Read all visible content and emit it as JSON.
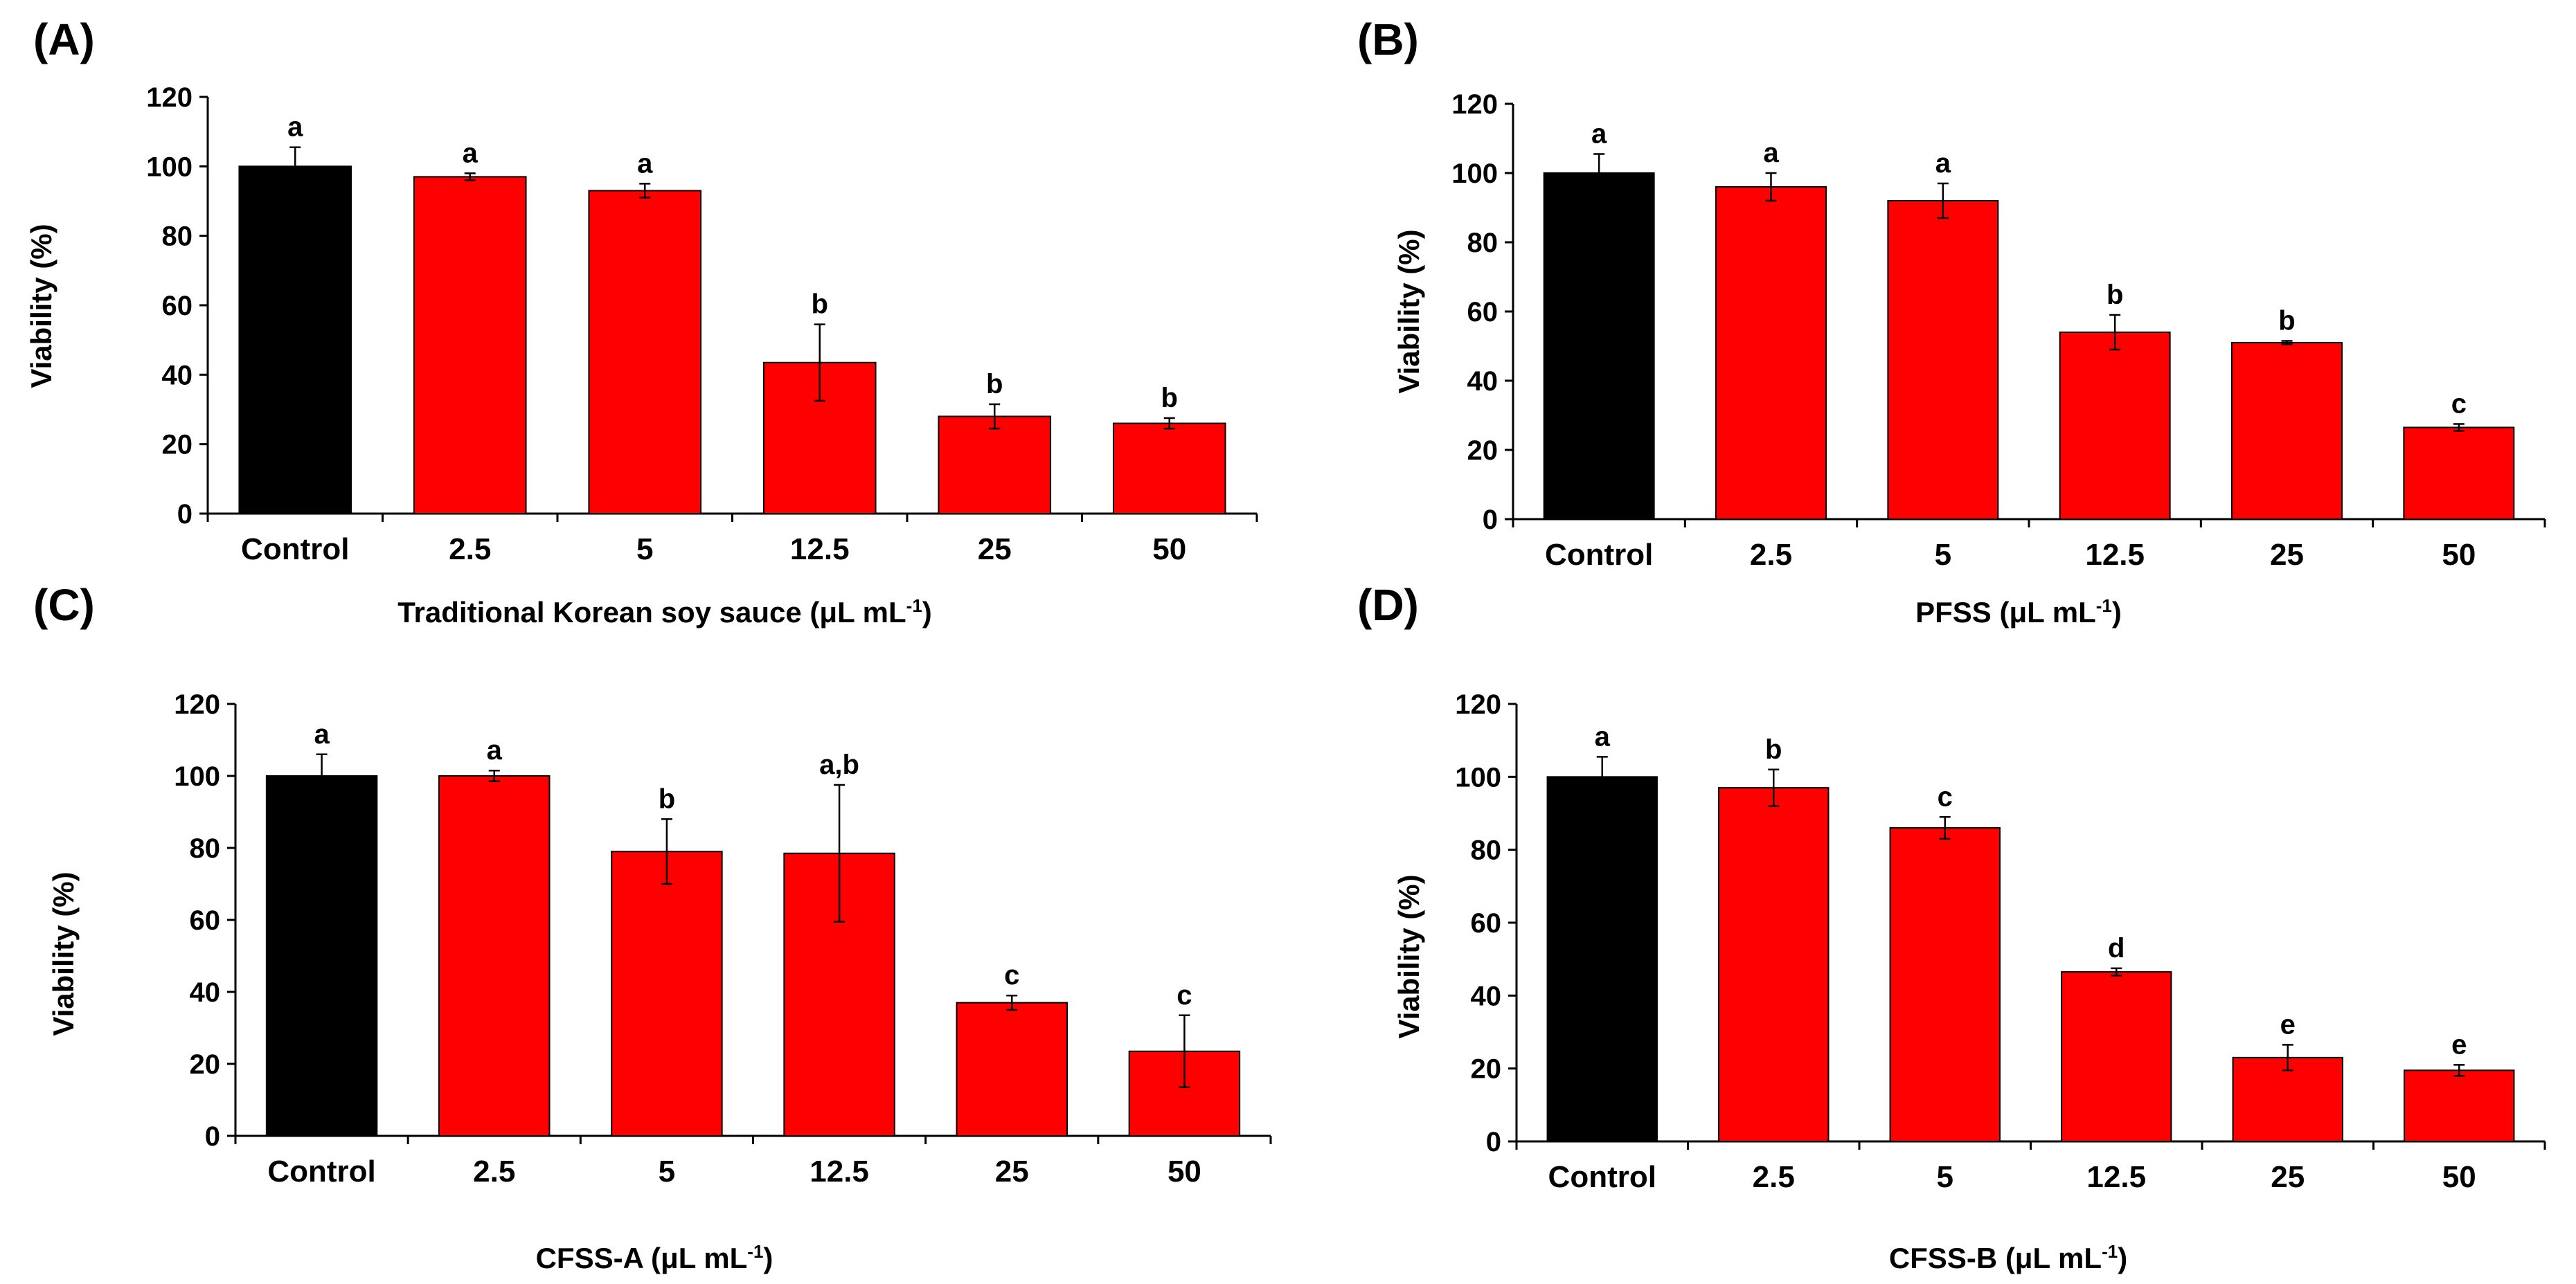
{
  "colors": {
    "control": "#000000",
    "treatment": "#ff0000",
    "axis": "#000000"
  },
  "chart_data": [
    {
      "type": "bar",
      "panel_label": "(A)",
      "categories": [
        "Control",
        "2.5",
        "5",
        "12.5",
        "25",
        "50"
      ],
      "values": [
        100,
        97,
        93,
        43.5,
        28,
        26
      ],
      "errors": [
        5.5,
        1,
        2,
        11,
        3.5,
        1.5
      ],
      "significance": [
        "a",
        "a",
        "a",
        "b",
        "b",
        "b"
      ],
      "xlabel_main": "Traditional Korean soy sauce (μL mL",
      "xlabel_sup": "-1",
      "xlabel_end": ")",
      "ylabel": "Viability (%)",
      "ylim": [
        0,
        120
      ],
      "yticks": [
        0,
        20,
        40,
        60,
        80,
        100,
        120
      ]
    },
    {
      "type": "bar",
      "panel_label": "(B)",
      "categories": [
        "Control",
        "2.5",
        "5",
        "12.5",
        "25",
        "50"
      ],
      "values": [
        100,
        96,
        92,
        54,
        51,
        26.5
      ],
      "errors": [
        5.5,
        4,
        5,
        5,
        0.5,
        1
      ],
      "significance": [
        "a",
        "a",
        "a",
        "b",
        "b",
        "c"
      ],
      "xlabel_main": "PFSS (μL mL",
      "xlabel_sup": "-1",
      "xlabel_end": ")",
      "ylabel": "Viability (%)",
      "ylim": [
        0,
        120
      ],
      "yticks": [
        0,
        20,
        40,
        60,
        80,
        100,
        120
      ]
    },
    {
      "type": "bar",
      "panel_label": "(C)",
      "categories": [
        "Control",
        "2.5",
        "5",
        "12.5",
        "25",
        "50"
      ],
      "values": [
        100,
        100,
        79,
        78.5,
        37,
        23.5
      ],
      "errors": [
        6,
        1.5,
        9,
        19,
        2,
        10
      ],
      "significance": [
        "a",
        "a",
        "b",
        "a,b",
        "c",
        "c"
      ],
      "xlabel_main": "CFSS-A (μL mL",
      "xlabel_sup": "-1",
      "xlabel_end": ")",
      "ylabel": "Viability (%)",
      "ylim": [
        0,
        120
      ],
      "yticks": [
        0,
        20,
        40,
        60,
        80,
        100,
        120
      ]
    },
    {
      "type": "bar",
      "panel_label": "(D)",
      "categories": [
        "Control",
        "2.5",
        "5",
        "12.5",
        "25",
        "50"
      ],
      "values": [
        100,
        97,
        86,
        46.5,
        23,
        19.5
      ],
      "errors": [
        5.5,
        5,
        3,
        1,
        3.5,
        1.5
      ],
      "significance": [
        "a",
        "b",
        "c",
        "d",
        "e",
        "e"
      ],
      "xlabel_main": "CFSS-B (μL mL",
      "xlabel_sup": "-1",
      "xlabel_end": ")",
      "ylabel": "Viability (%)",
      "ylim": [
        0,
        120
      ],
      "yticks": [
        0,
        20,
        40,
        60,
        80,
        100,
        120
      ]
    }
  ]
}
